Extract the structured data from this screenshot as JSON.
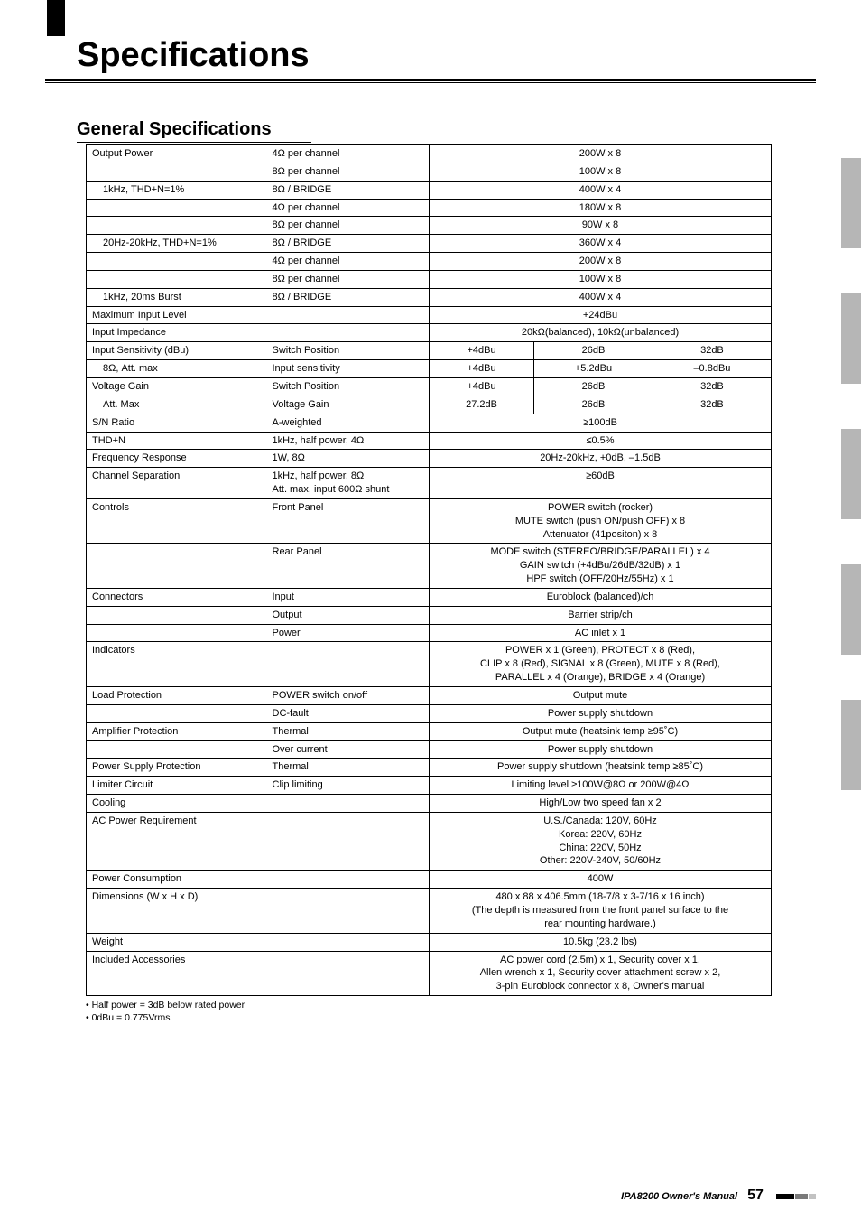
{
  "page": {
    "title": "Specifications",
    "section": "General Specifications",
    "footnote1": "• Half power = 3dB below rated power",
    "footnote2": "• 0dBu = 0.775Vrms",
    "footer_manual": "IPA8200  Owner's Manual",
    "footer_page": "57"
  },
  "rows": {
    "r1": {
      "c1": "Output Power",
      "c2": "4Ω per channel",
      "v": "200W x 8"
    },
    "r2": {
      "c1": "",
      "c2": "8Ω per channel",
      "v": "100W x 8"
    },
    "r3": {
      "c1": "1kHz, THD+N=1%",
      "c2": "8Ω / BRIDGE",
      "v": "400W x 4"
    },
    "r4": {
      "c1": "",
      "c2": "4Ω per channel",
      "v": "180W x 8"
    },
    "r5": {
      "c1": "",
      "c2": "8Ω per channel",
      "v": "90W x 8"
    },
    "r6": {
      "c1": "20Hz-20kHz, THD+N=1%",
      "c2": "8Ω / BRIDGE",
      "v": "360W x 4"
    },
    "r7": {
      "c1": "",
      "c2": "4Ω per channel",
      "v": "200W x 8"
    },
    "r8": {
      "c1": "",
      "c2": "8Ω per channel",
      "v": "100W x 8"
    },
    "r9": {
      "c1": "1kHz, 20ms Burst",
      "c2": "8Ω / BRIDGE",
      "v": "400W x 4"
    },
    "r10": {
      "c1": "Maximum Input Level",
      "c2": "",
      "v": "+24dBu"
    },
    "r11": {
      "c1": "Input Impedance",
      "c2": "",
      "v": "20kΩ(balanced), 10kΩ(unbalanced)"
    },
    "r12": {
      "c1": "Input Sensitivity (dBu)",
      "c2": "Switch Position",
      "v1": "+4dBu",
      "v2": "26dB",
      "v3": "32dB"
    },
    "r13": {
      "c1": "8Ω, Att. max",
      "c2": "Input sensitivity",
      "v1": "+4dBu",
      "v2": "+5.2dBu",
      "v3": "–0.8dBu"
    },
    "r14": {
      "c1": "Voltage Gain",
      "c2": "Switch Position",
      "v1": "+4dBu",
      "v2": "26dB",
      "v3": "32dB"
    },
    "r15": {
      "c1": "Att. Max",
      "c2": "Voltage Gain",
      "v1": "27.2dB",
      "v2": "26dB",
      "v3": "32dB"
    },
    "r16": {
      "c1": "S/N Ratio",
      "c2": "A-weighted",
      "v": "≥100dB"
    },
    "r17": {
      "c1": "THD+N",
      "c2": "1kHz, half power, 4Ω",
      "v": "≤0.5%"
    },
    "r18": {
      "c1": "Frequency Response",
      "c2": "1W, 8Ω",
      "v": "20Hz-20kHz, +0dB, –1.5dB"
    },
    "r19": {
      "c1": "Channel Separation",
      "c2": "1kHz, half power, 8Ω\nAtt. max, input 600Ω shunt",
      "v": "≥60dB"
    },
    "r20": {
      "c1": "Controls",
      "c2": "Front Panel",
      "v": "POWER switch (rocker)\nMUTE switch (push ON/push OFF) x 8\nAttenuator (41positon) x 8"
    },
    "r21": {
      "c1": "",
      "c2": "Rear Panel",
      "v": "MODE switch (STEREO/BRIDGE/PARALLEL) x 4\nGAIN switch (+4dBu/26dB/32dB) x 1\nHPF switch (OFF/20Hz/55Hz) x 1"
    },
    "r22": {
      "c1": "Connectors",
      "c2": "Input",
      "v": "Euroblock (balanced)/ch"
    },
    "r23": {
      "c1": "",
      "c2": "Output",
      "v": "Barrier strip/ch"
    },
    "r24": {
      "c1": "",
      "c2": "Power",
      "v": "AC inlet x 1"
    },
    "r25": {
      "c1": "Indicators",
      "c2": "",
      "v": "POWER x 1 (Green), PROTECT x 8 (Red),\nCLIP x 8 (Red), SIGNAL x 8 (Green), MUTE x 8 (Red),\nPARALLEL x 4 (Orange), BRIDGE x 4 (Orange)"
    },
    "r26": {
      "c1": "Load Protection",
      "c2": "POWER switch on/off",
      "v": "Output mute"
    },
    "r27": {
      "c1": "",
      "c2": "DC-fault",
      "v": "Power supply shutdown"
    },
    "r28": {
      "c1": "Amplifier Protection",
      "c2": "Thermal",
      "v": "Output mute (heatsink temp ≥95˚C)"
    },
    "r29": {
      "c1": "",
      "c2": "Over current",
      "v": "Power supply shutdown"
    },
    "r30": {
      "c1": "Power Supply Protection",
      "c2": "Thermal",
      "v": "Power supply shutdown (heatsink temp ≥85˚C)"
    },
    "r31": {
      "c1": "Limiter Circuit",
      "c2": "Clip limiting",
      "v": "Limiting level ≥100W@8Ω or 200W@4Ω"
    },
    "r32": {
      "c1": "Cooling",
      "c2": "",
      "v": "High/Low two speed fan x 2"
    },
    "r33": {
      "c1": "AC Power Requirement",
      "c2": "",
      "v": "U.S./Canada: 120V, 60Hz\nKorea: 220V, 60Hz\nChina: 220V, 50Hz\nOther: 220V-240V, 50/60Hz"
    },
    "r34": {
      "c1": "Power Consumption",
      "c2": "",
      "v": "400W"
    },
    "r35": {
      "c1": "Dimensions (W x H x D)",
      "c2": "",
      "v": "480 x 88 x 406.5mm (18-7/8 x 3-7/16 x 16 inch)\n(The depth is measured from the front panel surface to the\nrear mounting hardware.)"
    },
    "r36": {
      "c1": "Weight",
      "c2": "",
      "v": "10.5kg (23.2 lbs)"
    },
    "r37": {
      "c1": "Included Accessories",
      "c2": "",
      "v": "AC power cord (2.5m) x 1, Security cover x 1,\nAllen wrench x 1, Security cover attachment screw x 2,\n3-pin Euroblock connector x 8, Owner's manual"
    }
  }
}
